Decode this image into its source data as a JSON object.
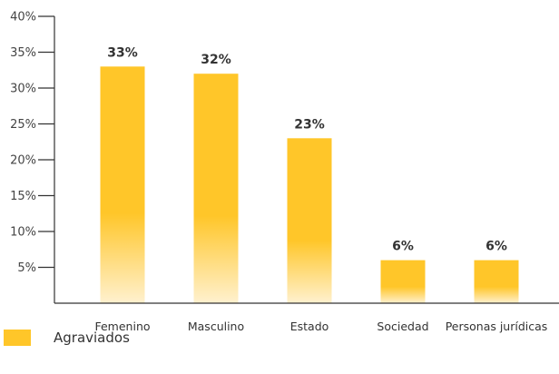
{
  "chart_data": {
    "type": "bar",
    "categories": [
      "Femenino",
      "Masculino",
      "Estado",
      "Sociedad",
      "Personas jurídicas"
    ],
    "series": [
      {
        "name": "Agraviados",
        "values": [
          33,
          32,
          23,
          6,
          6
        ]
      }
    ],
    "data_labels": [
      "33%",
      "32%",
      "23%",
      "6%",
      "6%"
    ],
    "y_ticks": [
      5,
      10,
      15,
      20,
      25,
      30,
      35,
      40
    ],
    "y_tick_labels": [
      "5%",
      "10%",
      "15%",
      "20%",
      "25%",
      "30%",
      "35%",
      "40%"
    ],
    "ylim": [
      0,
      40
    ],
    "grid": false,
    "legend_position": "bottom-left",
    "bar_color": "#FFC629",
    "bar_fade_color": "#FFF1CF",
    "axis_color": "#333333"
  },
  "legend": {
    "label": "Agraviados",
    "color": "#FFC629"
  }
}
